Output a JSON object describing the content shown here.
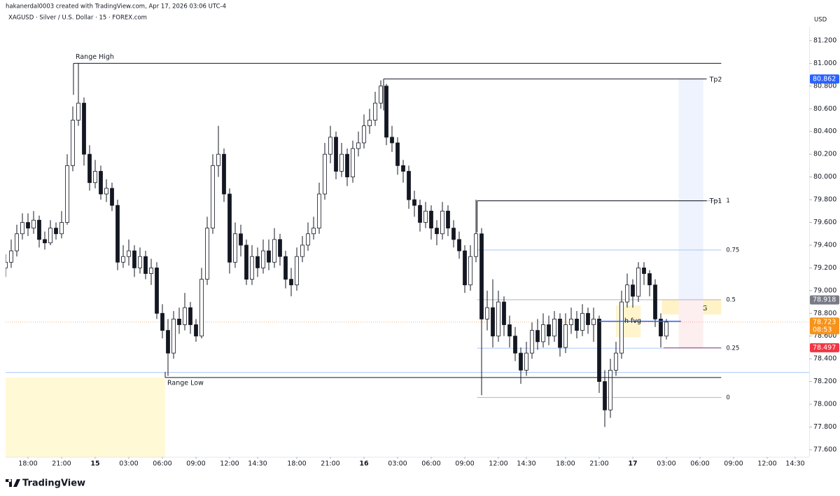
{
  "header": {
    "credit": "hakanerdal0003 created with TradingView.com, Apr 17, 2026 03:06 UTC-4",
    "symbol": "XAGUSD · Silver / U.S. Dollar · 15 · FOREX.com"
  },
  "chart_data": {
    "type": "candlestick",
    "currency": "USD",
    "up_color": "#ffffff",
    "down_color": "#131722",
    "outline_color": "#131722",
    "xlim": [
      -2,
      69.75
    ],
    "ylim": [
      77.538,
      81.323
    ],
    "xticks": [
      {
        "value": 0,
        "label": "18:00"
      },
      {
        "value": 3,
        "label": "21:00"
      },
      {
        "value": 6,
        "label": "15"
      },
      {
        "value": 9,
        "label": "03:00"
      },
      {
        "value": 12,
        "label": "06:00"
      },
      {
        "value": 15,
        "label": "09:00"
      },
      {
        "value": 18,
        "label": "12:00"
      },
      {
        "value": 20.5,
        "label": "14:30"
      },
      {
        "value": 24,
        "label": "18:00"
      },
      {
        "value": 27,
        "label": "21:00"
      },
      {
        "value": 30,
        "label": "16"
      },
      {
        "value": 33,
        "label": "03:00"
      },
      {
        "value": 36,
        "label": "06:00"
      },
      {
        "value": 39,
        "label": "09:00"
      },
      {
        "value": 42,
        "label": "12:00"
      },
      {
        "value": 44.5,
        "label": "14:30"
      },
      {
        "value": 48,
        "label": "18:00"
      },
      {
        "value": 51,
        "label": "21:00"
      },
      {
        "value": 54,
        "label": "17"
      },
      {
        "value": 57,
        "label": "03:00"
      },
      {
        "value": 60,
        "label": "06:00"
      },
      {
        "value": 63,
        "label": "09:00"
      },
      {
        "value": 66,
        "label": "12:00"
      },
      {
        "value": 68.5,
        "label": "14:30"
      }
    ],
    "yticks": [
      {
        "value": 77.6,
        "label": "77.600"
      },
      {
        "value": 77.8,
        "label": "77.800"
      },
      {
        "value": 78.0,
        "label": "78.000"
      },
      {
        "value": 78.2,
        "label": "78.200"
      },
      {
        "value": 78.4,
        "label": "78.400"
      },
      {
        "value": 78.6,
        "label": "78.600"
      },
      {
        "value": 78.8,
        "label": "78.800"
      },
      {
        "value": 79.0,
        "label": "79.000"
      },
      {
        "value": 79.2,
        "label": "79.200"
      },
      {
        "value": 79.4,
        "label": "79.400"
      },
      {
        "value": 79.6,
        "label": "79.600"
      },
      {
        "value": 79.8,
        "label": "79.800"
      },
      {
        "value": 80.0,
        "label": "80.000"
      },
      {
        "value": 80.2,
        "label": "80.200"
      },
      {
        "value": 80.4,
        "label": "80.400"
      },
      {
        "value": 80.6,
        "label": "80.600"
      },
      {
        "value": 80.8,
        "label": "80.800"
      },
      {
        "value": 81.0,
        "label": "81.000"
      },
      {
        "value": 81.2,
        "label": "81.200"
      }
    ],
    "x": [
      -2,
      -1.5,
      -1,
      -0.5,
      0,
      0.5,
      1,
      1.5,
      2,
      2.5,
      3,
      3.5,
      4,
      4.5,
      5,
      5.5,
      6,
      6.5,
      7,
      7.5,
      8,
      8.5,
      9,
      9.5,
      10,
      10.5,
      11,
      11.5,
      12,
      12.5,
      13,
      13.5,
      14,
      14.5,
      15,
      15.5,
      16,
      16.5,
      17,
      17.5,
      18,
      18.5,
      19,
      19.5,
      20,
      20.5,
      21,
      21.5,
      22,
      22.5,
      23,
      23.5,
      24,
      24.5,
      25,
      25.5,
      26,
      26.5,
      27,
      27.5,
      28,
      28.5,
      29,
      29.5,
      30,
      30.5,
      31,
      31.5,
      32,
      32.5,
      33,
      33.5,
      34,
      34.5,
      35,
      35.5,
      36,
      36.5,
      37,
      37.5,
      38,
      38.5,
      39,
      39.5,
      40,
      40.5,
      41,
      41.5,
      42,
      42.5,
      43,
      43.5,
      44,
      44.5,
      45,
      45.5,
      46,
      46.5,
      47,
      47.5,
      48,
      48.5,
      49,
      49.5,
      50,
      50.5,
      51,
      51.5,
      52,
      52.5,
      53,
      53.5,
      54,
      54.5,
      55,
      55.5,
      56,
      56.5,
      57
    ],
    "ohlc": [
      [
        79.2,
        79.32,
        79.12,
        79.25
      ],
      [
        79.25,
        79.45,
        79.2,
        79.35
      ],
      [
        79.35,
        79.58,
        79.3,
        79.5
      ],
      [
        79.5,
        79.68,
        79.45,
        79.6
      ],
      [
        79.6,
        79.68,
        79.48,
        79.55
      ],
      [
        79.55,
        79.7,
        79.5,
        79.62
      ],
      [
        79.62,
        79.66,
        79.38,
        79.45
      ],
      [
        79.45,
        79.52,
        79.36,
        79.42
      ],
      [
        79.42,
        79.62,
        79.4,
        79.55
      ],
      [
        79.55,
        79.6,
        79.45,
        79.5
      ],
      [
        79.5,
        79.7,
        79.46,
        79.6
      ],
      [
        79.6,
        80.2,
        79.58,
        80.1
      ],
      [
        80.1,
        80.62,
        80.05,
        80.5
      ],
      [
        80.5,
        81.0,
        80.45,
        80.65
      ],
      [
        80.65,
        80.7,
        80.1,
        80.2
      ],
      [
        80.2,
        80.28,
        79.88,
        79.95
      ],
      [
        79.95,
        80.15,
        79.9,
        80.05
      ],
      [
        80.05,
        80.1,
        79.8,
        79.85
      ],
      [
        79.85,
        79.98,
        79.78,
        79.9
      ],
      [
        79.9,
        79.95,
        79.7,
        79.75
      ],
      [
        79.75,
        79.8,
        79.18,
        79.25
      ],
      [
        79.25,
        79.4,
        79.2,
        79.3
      ],
      [
        79.3,
        79.45,
        79.22,
        79.35
      ],
      [
        79.35,
        79.4,
        79.12,
        79.2
      ],
      [
        79.2,
        79.38,
        79.15,
        79.3
      ],
      [
        79.3,
        79.35,
        79.1,
        79.15
      ],
      [
        79.15,
        79.28,
        79.05,
        79.2
      ],
      [
        79.2,
        79.25,
        78.75,
        78.8
      ],
      [
        78.8,
        78.88,
        78.58,
        78.65
      ],
      [
        78.65,
        78.75,
        78.25,
        78.45
      ],
      [
        78.45,
        78.82,
        78.4,
        78.75
      ],
      [
        78.75,
        78.85,
        78.62,
        78.7
      ],
      [
        78.7,
        78.98,
        78.65,
        78.85
      ],
      [
        78.85,
        78.9,
        78.62,
        78.7
      ],
      [
        78.7,
        78.75,
        78.55,
        78.6
      ],
      [
        78.6,
        79.2,
        78.58,
        79.1
      ],
      [
        79.1,
        79.65,
        79.05,
        79.55
      ],
      [
        79.55,
        80.2,
        79.5,
        80.1
      ],
      [
        80.1,
        80.45,
        80.0,
        80.2
      ],
      [
        80.2,
        80.25,
        79.78,
        79.85
      ],
      [
        79.85,
        79.9,
        79.15,
        79.25
      ],
      [
        79.25,
        79.6,
        79.2,
        79.5
      ],
      [
        79.5,
        79.58,
        79.3,
        79.4
      ],
      [
        79.4,
        79.45,
        79.05,
        79.1
      ],
      [
        79.1,
        79.4,
        79.05,
        79.3
      ],
      [
        79.3,
        79.38,
        79.12,
        79.2
      ],
      [
        79.2,
        79.45,
        79.15,
        79.35
      ],
      [
        79.35,
        79.45,
        79.18,
        79.25
      ],
      [
        79.25,
        79.55,
        79.2,
        79.45
      ],
      [
        79.45,
        79.5,
        79.22,
        79.3
      ],
      [
        79.3,
        79.35,
        79.02,
        79.1
      ],
      [
        79.1,
        79.2,
        78.95,
        79.05
      ],
      [
        79.05,
        79.38,
        79.0,
        79.3
      ],
      [
        79.3,
        79.48,
        79.25,
        79.4
      ],
      [
        79.4,
        79.6,
        79.35,
        79.5
      ],
      [
        79.5,
        79.65,
        79.45,
        79.55
      ],
      [
        79.55,
        79.95,
        79.5,
        79.85
      ],
      [
        79.85,
        80.3,
        79.8,
        80.2
      ],
      [
        80.2,
        80.45,
        80.12,
        80.35
      ],
      [
        80.35,
        80.4,
        79.98,
        80.05
      ],
      [
        80.05,
        80.3,
        80.0,
        80.2
      ],
      [
        80.2,
        80.25,
        79.92,
        80.0
      ],
      [
        80.0,
        80.32,
        79.95,
        80.25
      ],
      [
        80.25,
        80.4,
        80.18,
        80.3
      ],
      [
        80.3,
        80.55,
        80.25,
        80.45
      ],
      [
        80.45,
        80.6,
        80.38,
        80.5
      ],
      [
        80.5,
        80.75,
        80.45,
        80.65
      ],
      [
        80.65,
        80.85,
        80.6,
        80.8
      ],
      [
        80.8,
        80.82,
        80.28,
        80.35
      ],
      [
        80.35,
        80.45,
        80.22,
        80.3
      ],
      [
        80.3,
        80.35,
        80.02,
        80.1
      ],
      [
        80.1,
        80.15,
        79.95,
        80.05
      ],
      [
        80.05,
        80.1,
        79.72,
        79.8
      ],
      [
        79.8,
        79.88,
        79.65,
        79.75
      ],
      [
        79.75,
        79.8,
        79.52,
        79.6
      ],
      [
        79.6,
        79.78,
        79.55,
        79.7
      ],
      [
        79.7,
        79.75,
        79.45,
        79.55
      ],
      [
        79.55,
        79.62,
        79.4,
        79.5
      ],
      [
        79.5,
        79.78,
        79.45,
        79.7
      ],
      [
        79.7,
        79.75,
        79.48,
        79.55
      ],
      [
        79.55,
        79.62,
        79.38,
        79.45
      ],
      [
        79.45,
        79.52,
        79.28,
        79.35
      ],
      [
        79.35,
        79.4,
        78.98,
        79.05
      ],
      [
        79.05,
        79.4,
        79.0,
        79.3
      ],
      [
        79.3,
        79.8,
        79.25,
        79.5
      ],
      [
        79.5,
        79.55,
        78.08,
        78.75
      ],
      [
        78.75,
        79.0,
        78.65,
        78.85
      ],
      [
        78.85,
        79.1,
        78.5,
        78.6
      ],
      [
        78.6,
        79.0,
        78.55,
        78.9
      ],
      [
        78.9,
        78.95,
        78.6,
        78.7
      ],
      [
        78.7,
        78.78,
        78.5,
        78.6
      ],
      [
        78.6,
        78.68,
        78.38,
        78.45
      ],
      [
        78.45,
        78.5,
        78.18,
        78.3
      ],
      [
        78.3,
        78.55,
        78.25,
        78.45
      ],
      [
        78.45,
        78.72,
        78.4,
        78.65
      ],
      [
        78.65,
        78.75,
        78.48,
        78.55
      ],
      [
        78.55,
        78.8,
        78.5,
        78.7
      ],
      [
        78.7,
        78.78,
        78.52,
        78.6
      ],
      [
        78.6,
        78.82,
        78.55,
        78.75
      ],
      [
        78.75,
        78.8,
        78.42,
        78.5
      ],
      [
        78.5,
        78.8,
        78.45,
        78.7
      ],
      [
        78.7,
        78.85,
        78.62,
        78.75
      ],
      [
        78.75,
        78.82,
        78.58,
        78.65
      ],
      [
        78.65,
        78.88,
        78.6,
        78.8
      ],
      [
        78.8,
        78.85,
        78.62,
        78.7
      ],
      [
        78.7,
        78.85,
        78.55,
        78.75
      ],
      [
        78.75,
        78.78,
        78.1,
        78.2
      ],
      [
        78.2,
        78.3,
        77.8,
        77.95
      ],
      [
        77.95,
        78.4,
        77.88,
        78.3
      ],
      [
        78.3,
        78.55,
        78.25,
        78.45
      ],
      [
        78.45,
        79.0,
        78.4,
        78.9
      ],
      [
        78.9,
        79.15,
        78.85,
        79.05
      ],
      [
        79.05,
        79.1,
        78.85,
        78.95
      ],
      [
        78.95,
        79.25,
        78.9,
        79.2
      ],
      [
        79.2,
        79.25,
        79.05,
        79.15
      ],
      [
        79.15,
        79.18,
        78.95,
        79.05
      ],
      [
        79.05,
        79.1,
        78.68,
        78.75
      ],
      [
        78.75,
        78.8,
        78.5,
        78.6
      ],
      [
        78.6,
        78.75,
        78.57,
        78.723
      ]
    ],
    "zones": [
      {
        "x": [
          -2,
          12.25
        ],
        "y": [
          77.538,
          78.235
        ],
        "color": "#fff9d6"
      },
      {
        "x": [
          52.5,
          54.7
        ],
        "y": [
          78.59,
          78.87
        ],
        "color": "#fff4cc"
      },
      {
        "x": [
          56.6,
          61.9
        ],
        "y": [
          78.79,
          78.92
        ],
        "color": "#fff2c6",
        "label": "IFVG"
      },
      {
        "x": [
          58.1,
          60.3
        ],
        "y": [
          78.918,
          80.862
        ],
        "color": "#eef3fd"
      },
      {
        "x": [
          58.1,
          60.3
        ],
        "y": [
          78.497,
          78.918
        ],
        "color": "#fdeef0"
      }
    ],
    "lines": [
      {
        "label": "Range High",
        "value": 81.0,
        "x": [
          4.06,
          61.9
        ],
        "color": "#131722"
      },
      {
        "label": "Range Low",
        "value": 78.235,
        "x": [
          12.25,
          61.9
        ],
        "color": "#131722"
      },
      {
        "label": "Tp2",
        "value": 80.862,
        "x": [
          31.75,
          60.6
        ],
        "color": "#131722"
      },
      {
        "label": "Tp1",
        "value": 79.79,
        "x": [
          40.1,
          60.6
        ],
        "color": "#131722"
      },
      {
        "label": "h fvg",
        "value": 78.73,
        "x": [
          51,
          58.3
        ],
        "color": "#2962ff"
      }
    ],
    "fib": {
      "x": [
        40.1,
        61.9
      ],
      "levels": [
        {
          "level": 1,
          "value": 79.79,
          "color": "#b2b5be"
        },
        {
          "level": 0.75,
          "value": 79.357,
          "color": "#a9c8f5"
        },
        {
          "level": 0.5,
          "value": 78.92,
          "color": "#b2b5be"
        },
        {
          "level": 0.25,
          "value": 78.493,
          "color": "#a9c8f5"
        },
        {
          "level": 0,
          "value": 78.06,
          "color": "#b2b5be"
        }
      ]
    },
    "stop_line": {
      "value": 78.497,
      "x": [
        56.75,
        61.9
      ],
      "color": "#f23645"
    },
    "price_lines": [
      {
        "value": 78.28,
        "color": "#a9c8f5",
        "style": "solid"
      },
      {
        "value": 78.723,
        "color": "#f7b27a",
        "style": "dotted"
      }
    ],
    "price_tags": [
      {
        "value": 80.862,
        "color": "#2962ff"
      },
      {
        "value": 78.918,
        "color": "#787b86"
      },
      {
        "value": 78.723,
        "color": "#f7931a",
        "countdown": "08:53"
      },
      {
        "value": 78.497,
        "color": "#f23645"
      }
    ]
  },
  "footer": {
    "brand": "TradingView"
  }
}
